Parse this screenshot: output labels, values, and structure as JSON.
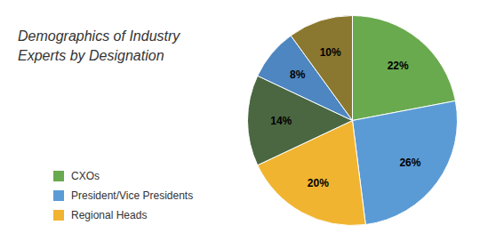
{
  "chart_data": {
    "type": "pie",
    "title": "Demographics of Industry\nExperts by Designation",
    "categories": [
      "CXOs",
      "President/Vice Presidents",
      "Regional Heads",
      null,
      null,
      null
    ],
    "values": [
      22,
      26,
      20,
      14,
      8,
      10
    ],
    "value_labels": [
      "22%",
      "26%",
      "20%",
      "14%",
      "8%",
      "10%"
    ],
    "colors": [
      "#6aaa4e",
      "#5b9bd5",
      "#f0b430",
      "#4a6741",
      "#4d86c0",
      "#8b7830"
    ],
    "data_labels": true,
    "legend": "lower left"
  }
}
